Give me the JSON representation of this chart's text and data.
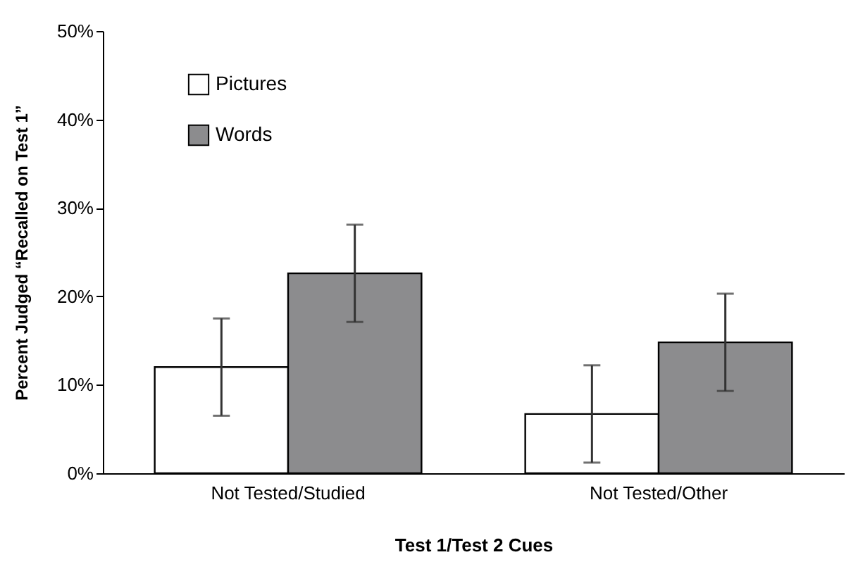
{
  "chart_data": {
    "type": "bar",
    "xlabel": "Test 1/Test 2 Cues",
    "ylabel": "Percent Judged “Recalled on Test 1”",
    "categories": [
      "Not Tested/Studied",
      "Not Tested/Other"
    ],
    "series": [
      {
        "name": "Pictures",
        "color": "#ffffff",
        "values": [
          12.0,
          6.7
        ],
        "errors": [
          5.5,
          5.5
        ]
      },
      {
        "name": "Words",
        "color": "#8c8c8e",
        "values": [
          22.6,
          14.8
        ],
        "errors": [
          5.5,
          5.5
        ]
      }
    ],
    "ylim": [
      0,
      50
    ],
    "yticks": [
      {
        "value": 0,
        "label": "0%"
      },
      {
        "value": 10,
        "label": "10%"
      },
      {
        "value": 20,
        "label": "20%"
      },
      {
        "value": 30,
        "label": "30%"
      },
      {
        "value": 40,
        "label": "40%"
      },
      {
        "value": 50,
        "label": "50%"
      }
    ],
    "grid": false,
    "legend": "top left"
  }
}
